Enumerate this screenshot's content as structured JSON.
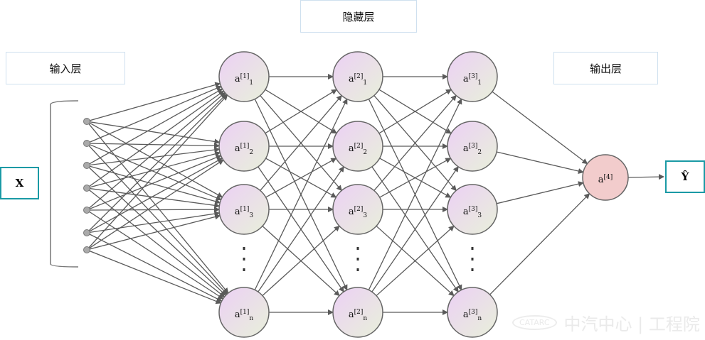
{
  "labels": {
    "input_layer": "输入层",
    "hidden_layer": "隐藏层",
    "output_layer": "输出层",
    "input": "X",
    "output": "Ŷ"
  },
  "layers": [
    {
      "prefix": "a",
      "sup": "[1]",
      "subs": [
        "1",
        "2",
        "3",
        "n"
      ]
    },
    {
      "prefix": "a",
      "sup": "[2]",
      "subs": [
        "1",
        "2",
        "3",
        "n"
      ]
    },
    {
      "prefix": "a",
      "sup": "[3]",
      "subs": [
        "1",
        "2",
        "3",
        "n"
      ]
    }
  ],
  "output_node": {
    "prefix": "a",
    "sup": "[4]"
  },
  "watermark": {
    "logo": "CATARC",
    "text": "中汽中心 | 工程院"
  },
  "colors": {
    "hidden_node": "#ead3f2",
    "hidden_node_grad": "#e8efdc",
    "output_node": "#f2cccc",
    "edge": "#5a5a5a",
    "io_border": "#1a9aa5",
    "label_border": "#cfe0ef"
  }
}
